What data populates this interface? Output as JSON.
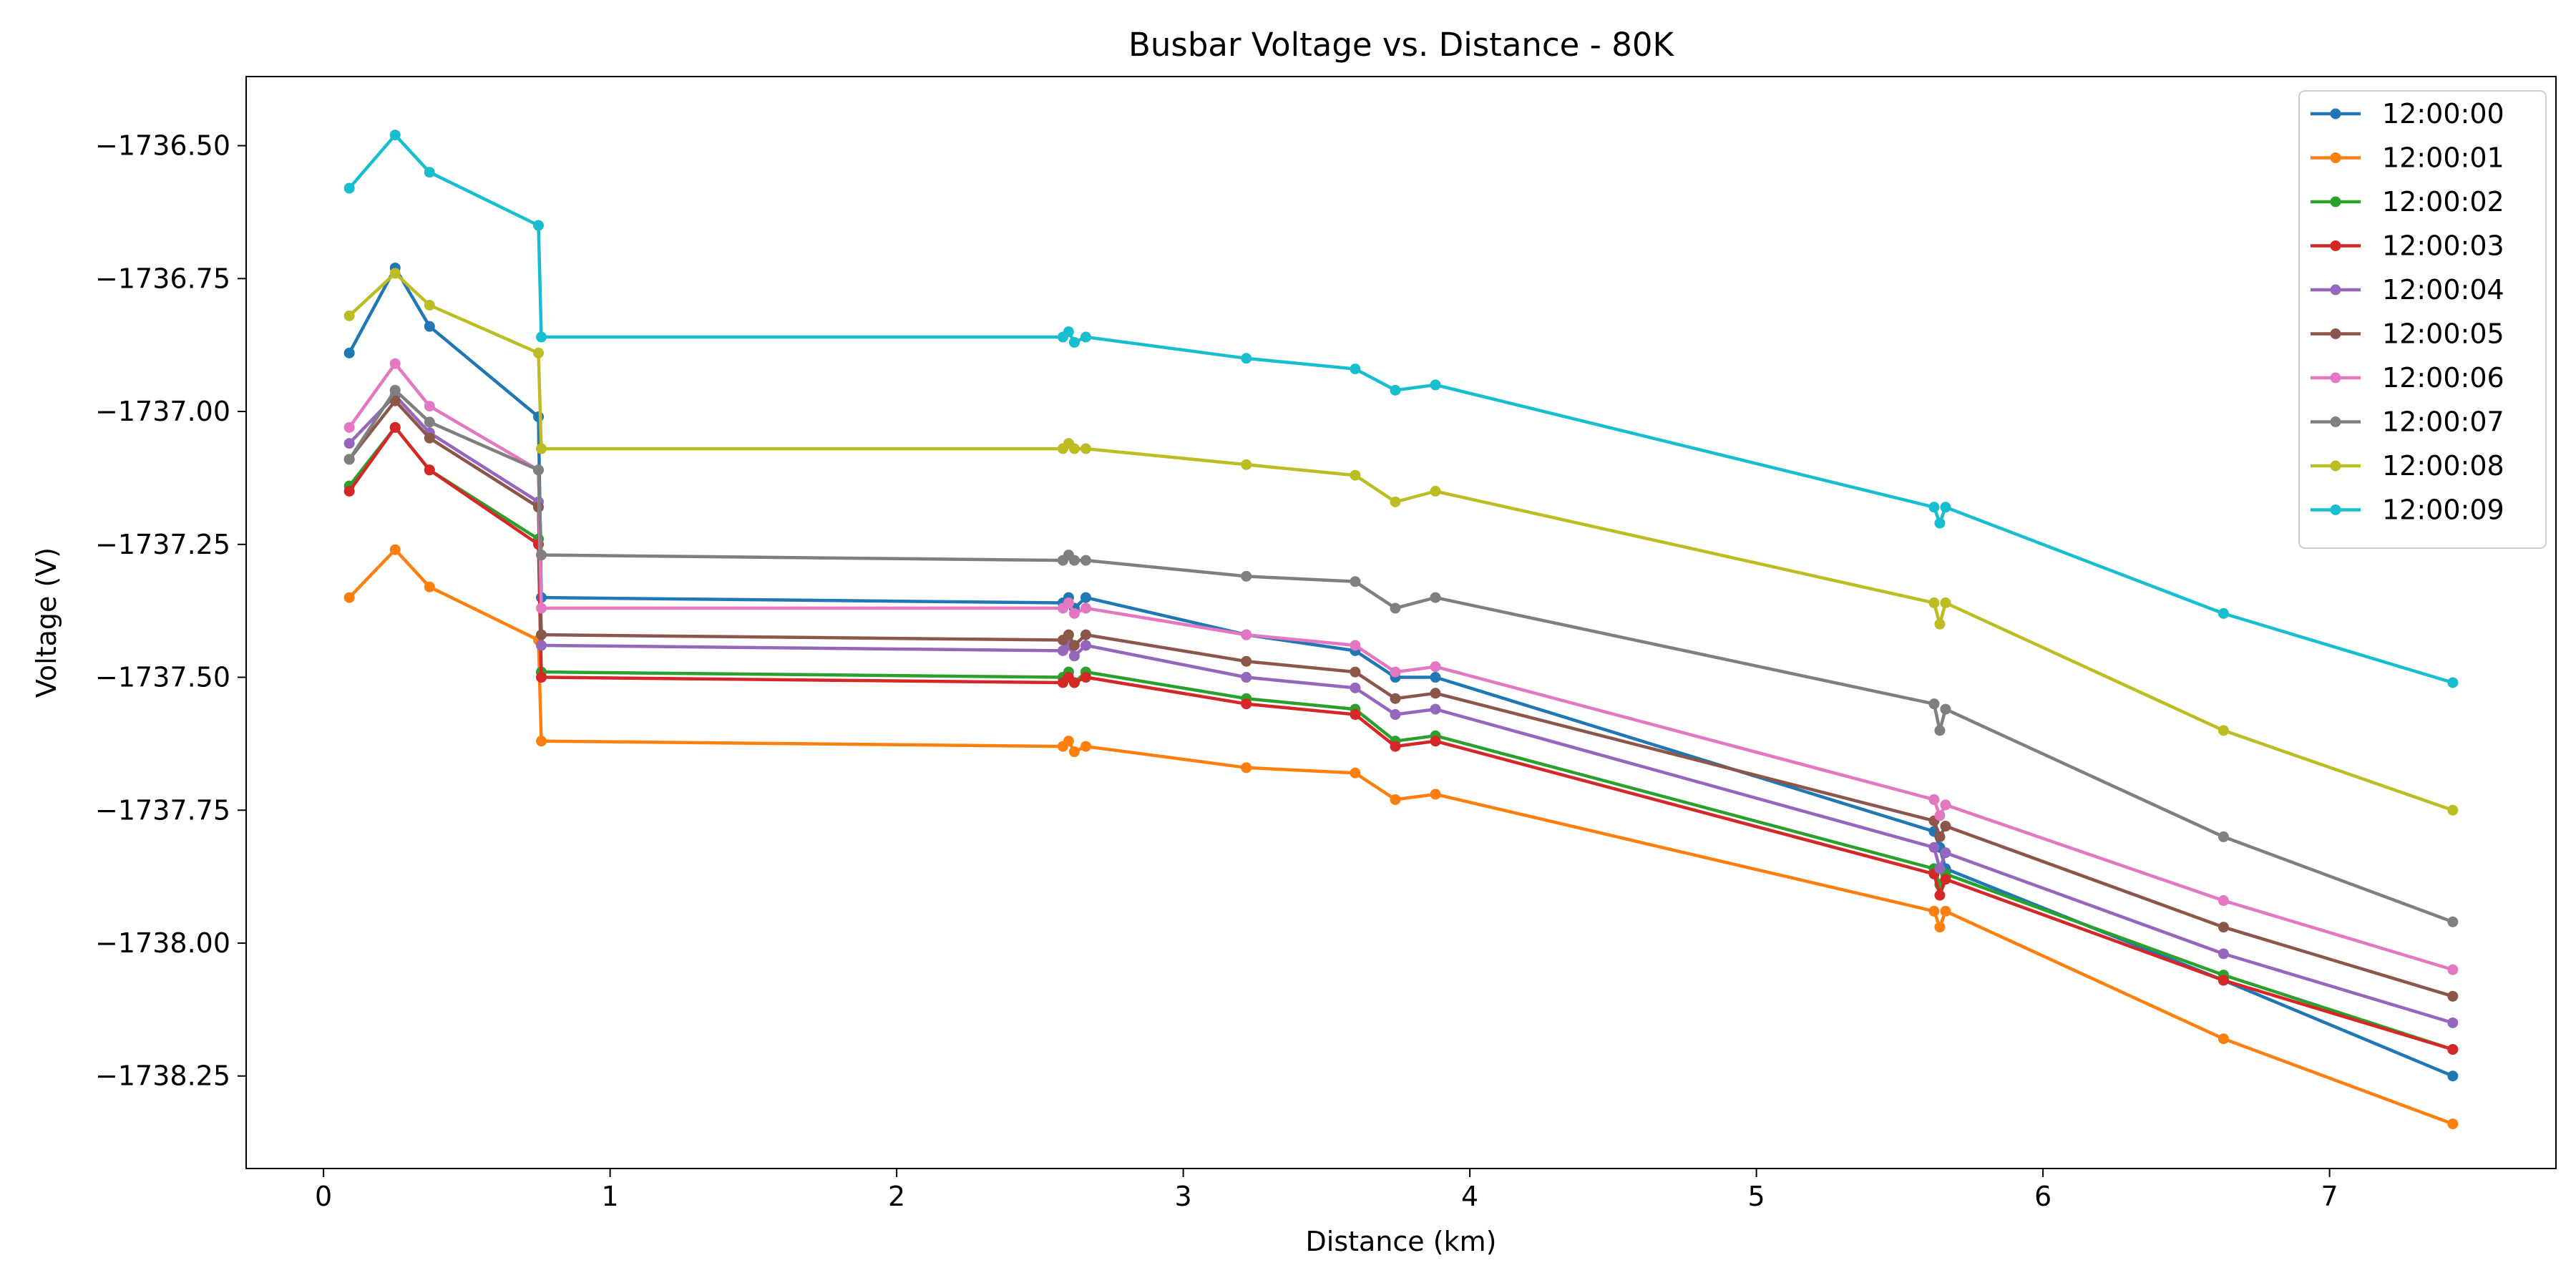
{
  "chart_data": {
    "type": "line",
    "title": "Busbar Voltage vs. Distance - 80K",
    "xlabel": "Distance (km)",
    "ylabel": "Voltage (V)",
    "xlim": [
      -0.27,
      7.79
    ],
    "ylim": [
      -1738.424,
      -1736.37
    ],
    "xticks": [
      0,
      1,
      2,
      3,
      4,
      5,
      6,
      7
    ],
    "xtick_labels": [
      "0",
      "1",
      "2",
      "3",
      "4",
      "5",
      "6",
      "7"
    ],
    "yticks": [
      -1736.5,
      -1736.75,
      -1737.0,
      -1737.25,
      -1737.5,
      -1737.75,
      -1738.0,
      -1738.25
    ],
    "ytick_labels": [
      "−1736.50",
      "−1736.75",
      "−1737.00",
      "−1737.25",
      "−1737.50",
      "−1737.75",
      "−1738.00",
      "−1738.25"
    ],
    "grid": false,
    "legend_position": "upper right",
    "x": [
      0.09,
      0.25,
      0.37,
      0.75,
      0.76,
      2.58,
      2.6,
      2.62,
      2.66,
      3.22,
      3.6,
      3.74,
      3.88,
      5.62,
      5.64,
      5.66,
      6.63,
      7.43
    ],
    "series": [
      {
        "name": "12:00:00",
        "color": "#1f77b4",
        "values": [
          -1736.89,
          -1736.73,
          -1736.84,
          -1737.01,
          -1737.35,
          -1737.36,
          -1737.35,
          -1737.37,
          -1737.35,
          -1737.42,
          -1737.45,
          -1737.5,
          -1737.5,
          -1737.79,
          -1737.82,
          -1737.86,
          -1738.07,
          -1738.25
        ]
      },
      {
        "name": "12:00:01",
        "color": "#ff7f0e",
        "values": [
          -1737.35,
          -1737.26,
          -1737.33,
          -1737.43,
          -1737.62,
          -1737.63,
          -1737.62,
          -1737.64,
          -1737.63,
          -1737.67,
          -1737.68,
          -1737.73,
          -1737.72,
          -1737.94,
          -1737.97,
          -1737.94,
          -1738.18,
          -1738.34
        ]
      },
      {
        "name": "12:00:02",
        "color": "#2ca02c",
        "values": [
          -1737.14,
          -1737.03,
          -1737.11,
          -1737.24,
          -1737.49,
          -1737.5,
          -1737.49,
          -1737.51,
          -1737.49,
          -1737.54,
          -1737.56,
          -1737.62,
          -1737.61,
          -1737.86,
          -1737.89,
          -1737.87,
          -1738.06,
          -1738.2
        ]
      },
      {
        "name": "12:00:03",
        "color": "#d62728",
        "values": [
          -1737.15,
          -1737.03,
          -1737.11,
          -1737.25,
          -1737.5,
          -1737.51,
          -1737.5,
          -1737.51,
          -1737.5,
          -1737.55,
          -1737.57,
          -1737.63,
          -1737.62,
          -1737.87,
          -1737.91,
          -1737.88,
          -1738.07,
          -1738.2
        ]
      },
      {
        "name": "12:00:04",
        "color": "#9467bd",
        "values": [
          -1737.06,
          -1736.97,
          -1737.04,
          -1737.17,
          -1737.44,
          -1737.45,
          -1737.44,
          -1737.46,
          -1737.44,
          -1737.5,
          -1737.52,
          -1737.57,
          -1737.56,
          -1737.82,
          -1737.86,
          -1737.83,
          -1738.02,
          -1738.15
        ]
      },
      {
        "name": "12:00:05",
        "color": "#8c564b",
        "values": [
          -1737.09,
          -1736.98,
          -1737.05,
          -1737.18,
          -1737.42,
          -1737.43,
          -1737.42,
          -1737.44,
          -1737.42,
          -1737.47,
          -1737.49,
          -1737.54,
          -1737.53,
          -1737.77,
          -1737.8,
          -1737.78,
          -1737.97,
          -1738.1
        ]
      },
      {
        "name": "12:00:06",
        "color": "#e377c2",
        "values": [
          -1737.03,
          -1736.91,
          -1736.99,
          -1737.11,
          -1737.37,
          -1737.37,
          -1737.36,
          -1737.38,
          -1737.37,
          -1737.42,
          -1737.44,
          -1737.49,
          -1737.48,
          -1737.73,
          -1737.76,
          -1737.74,
          -1737.92,
          -1738.05
        ]
      },
      {
        "name": "12:00:07",
        "color": "#7f7f7f",
        "values": [
          -1737.09,
          -1736.96,
          -1737.02,
          -1737.11,
          -1737.27,
          -1737.28,
          -1737.27,
          -1737.28,
          -1737.28,
          -1737.31,
          -1737.32,
          -1737.37,
          -1737.35,
          -1737.55,
          -1737.6,
          -1737.56,
          -1737.8,
          -1737.96
        ]
      },
      {
        "name": "12:00:08",
        "color": "#bcbd22",
        "values": [
          -1736.82,
          -1736.74,
          -1736.8,
          -1736.89,
          -1737.07,
          -1737.07,
          -1737.06,
          -1737.07,
          -1737.07,
          -1737.1,
          -1737.12,
          -1737.17,
          -1737.15,
          -1737.36,
          -1737.4,
          -1737.36,
          -1737.6,
          -1737.75
        ]
      },
      {
        "name": "12:00:09",
        "color": "#17becf",
        "values": [
          -1736.58,
          -1736.48,
          -1736.55,
          -1736.65,
          -1736.86,
          -1736.86,
          -1736.85,
          -1736.87,
          -1736.86,
          -1736.9,
          -1736.92,
          -1736.96,
          -1736.95,
          -1737.18,
          -1737.21,
          -1737.18,
          -1737.38,
          -1737.51
        ]
      }
    ]
  }
}
